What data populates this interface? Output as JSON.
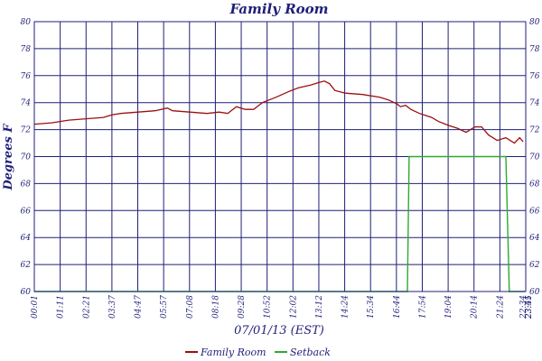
{
  "chart_data": {
    "type": "line",
    "title": "Family Room",
    "xlabel": "07/01/13 (EST)",
    "ylabel": "Degrees F",
    "ylim": [
      60,
      80
    ],
    "yticks": [
      60,
      62,
      64,
      66,
      68,
      70,
      72,
      74,
      76,
      78,
      80
    ],
    "xticks": [
      "00:01",
      "01:11",
      "02:21",
      "03:37",
      "04:47",
      "05:57",
      "07:08",
      "08:18",
      "09:28",
      "10:52",
      "12:02",
      "13:12",
      "14:24",
      "15:34",
      "16:44",
      "17:54",
      "19:04",
      "20:14",
      "21:24",
      "22:34",
      "23:45",
      "23:51"
    ],
    "grid": true,
    "legend_position": "bottom",
    "colors": {
      "grid": "#1f1f7a",
      "frame": "#1f1f7a",
      "text": "#1f1f7a"
    },
    "series": [
      {
        "name": "Family Room",
        "color": "#9b1010",
        "points": [
          [
            0.0,
            72.4
          ],
          [
            1.0,
            72.5
          ],
          [
            2.0,
            72.7
          ],
          [
            3.0,
            72.8
          ],
          [
            4.0,
            72.9
          ],
          [
            4.5,
            73.1
          ],
          [
            5.0,
            73.2
          ],
          [
            6.0,
            73.3
          ],
          [
            7.0,
            73.4
          ],
          [
            7.7,
            73.6
          ],
          [
            8.0,
            73.4
          ],
          [
            9.0,
            73.3
          ],
          [
            10.0,
            73.2
          ],
          [
            10.7,
            73.3
          ],
          [
            11.2,
            73.2
          ],
          [
            11.7,
            73.7
          ],
          [
            12.2,
            73.5
          ],
          [
            12.7,
            73.5
          ],
          [
            13.2,
            74.0
          ],
          [
            14.0,
            74.4
          ],
          [
            14.7,
            74.8
          ],
          [
            15.3,
            75.1
          ],
          [
            16.0,
            75.3
          ],
          [
            16.5,
            75.5
          ],
          [
            16.8,
            75.6
          ],
          [
            17.1,
            75.4
          ],
          [
            17.4,
            74.9
          ],
          [
            18.0,
            74.7
          ],
          [
            19.0,
            74.6
          ],
          [
            20.0,
            74.4
          ],
          [
            20.5,
            74.2
          ],
          [
            21.0,
            73.9
          ],
          [
            21.2,
            73.7
          ],
          [
            21.5,
            73.8
          ],
          [
            21.8,
            73.5
          ],
          [
            22.3,
            73.2
          ],
          [
            23.0,
            72.9
          ],
          [
            23.4,
            72.6
          ],
          [
            24.0,
            72.3
          ],
          [
            24.5,
            72.1
          ],
          [
            25.0,
            71.8
          ],
          [
            25.5,
            72.2
          ],
          [
            25.9,
            72.2
          ],
          [
            26.3,
            71.6
          ],
          [
            26.8,
            71.2
          ],
          [
            27.3,
            71.4
          ],
          [
            27.8,
            71.0
          ],
          [
            28.1,
            71.4
          ],
          [
            28.3,
            71.1
          ]
        ]
      },
      {
        "name": "Setback",
        "color": "#2eaa2e",
        "points": [
          [
            0.0,
            60.0
          ],
          [
            21.6,
            60.0
          ],
          [
            21.7,
            70.0
          ],
          [
            27.3,
            70.0
          ],
          [
            27.5,
            60.0
          ],
          [
            28.4,
            60.0
          ]
        ]
      }
    ]
  }
}
